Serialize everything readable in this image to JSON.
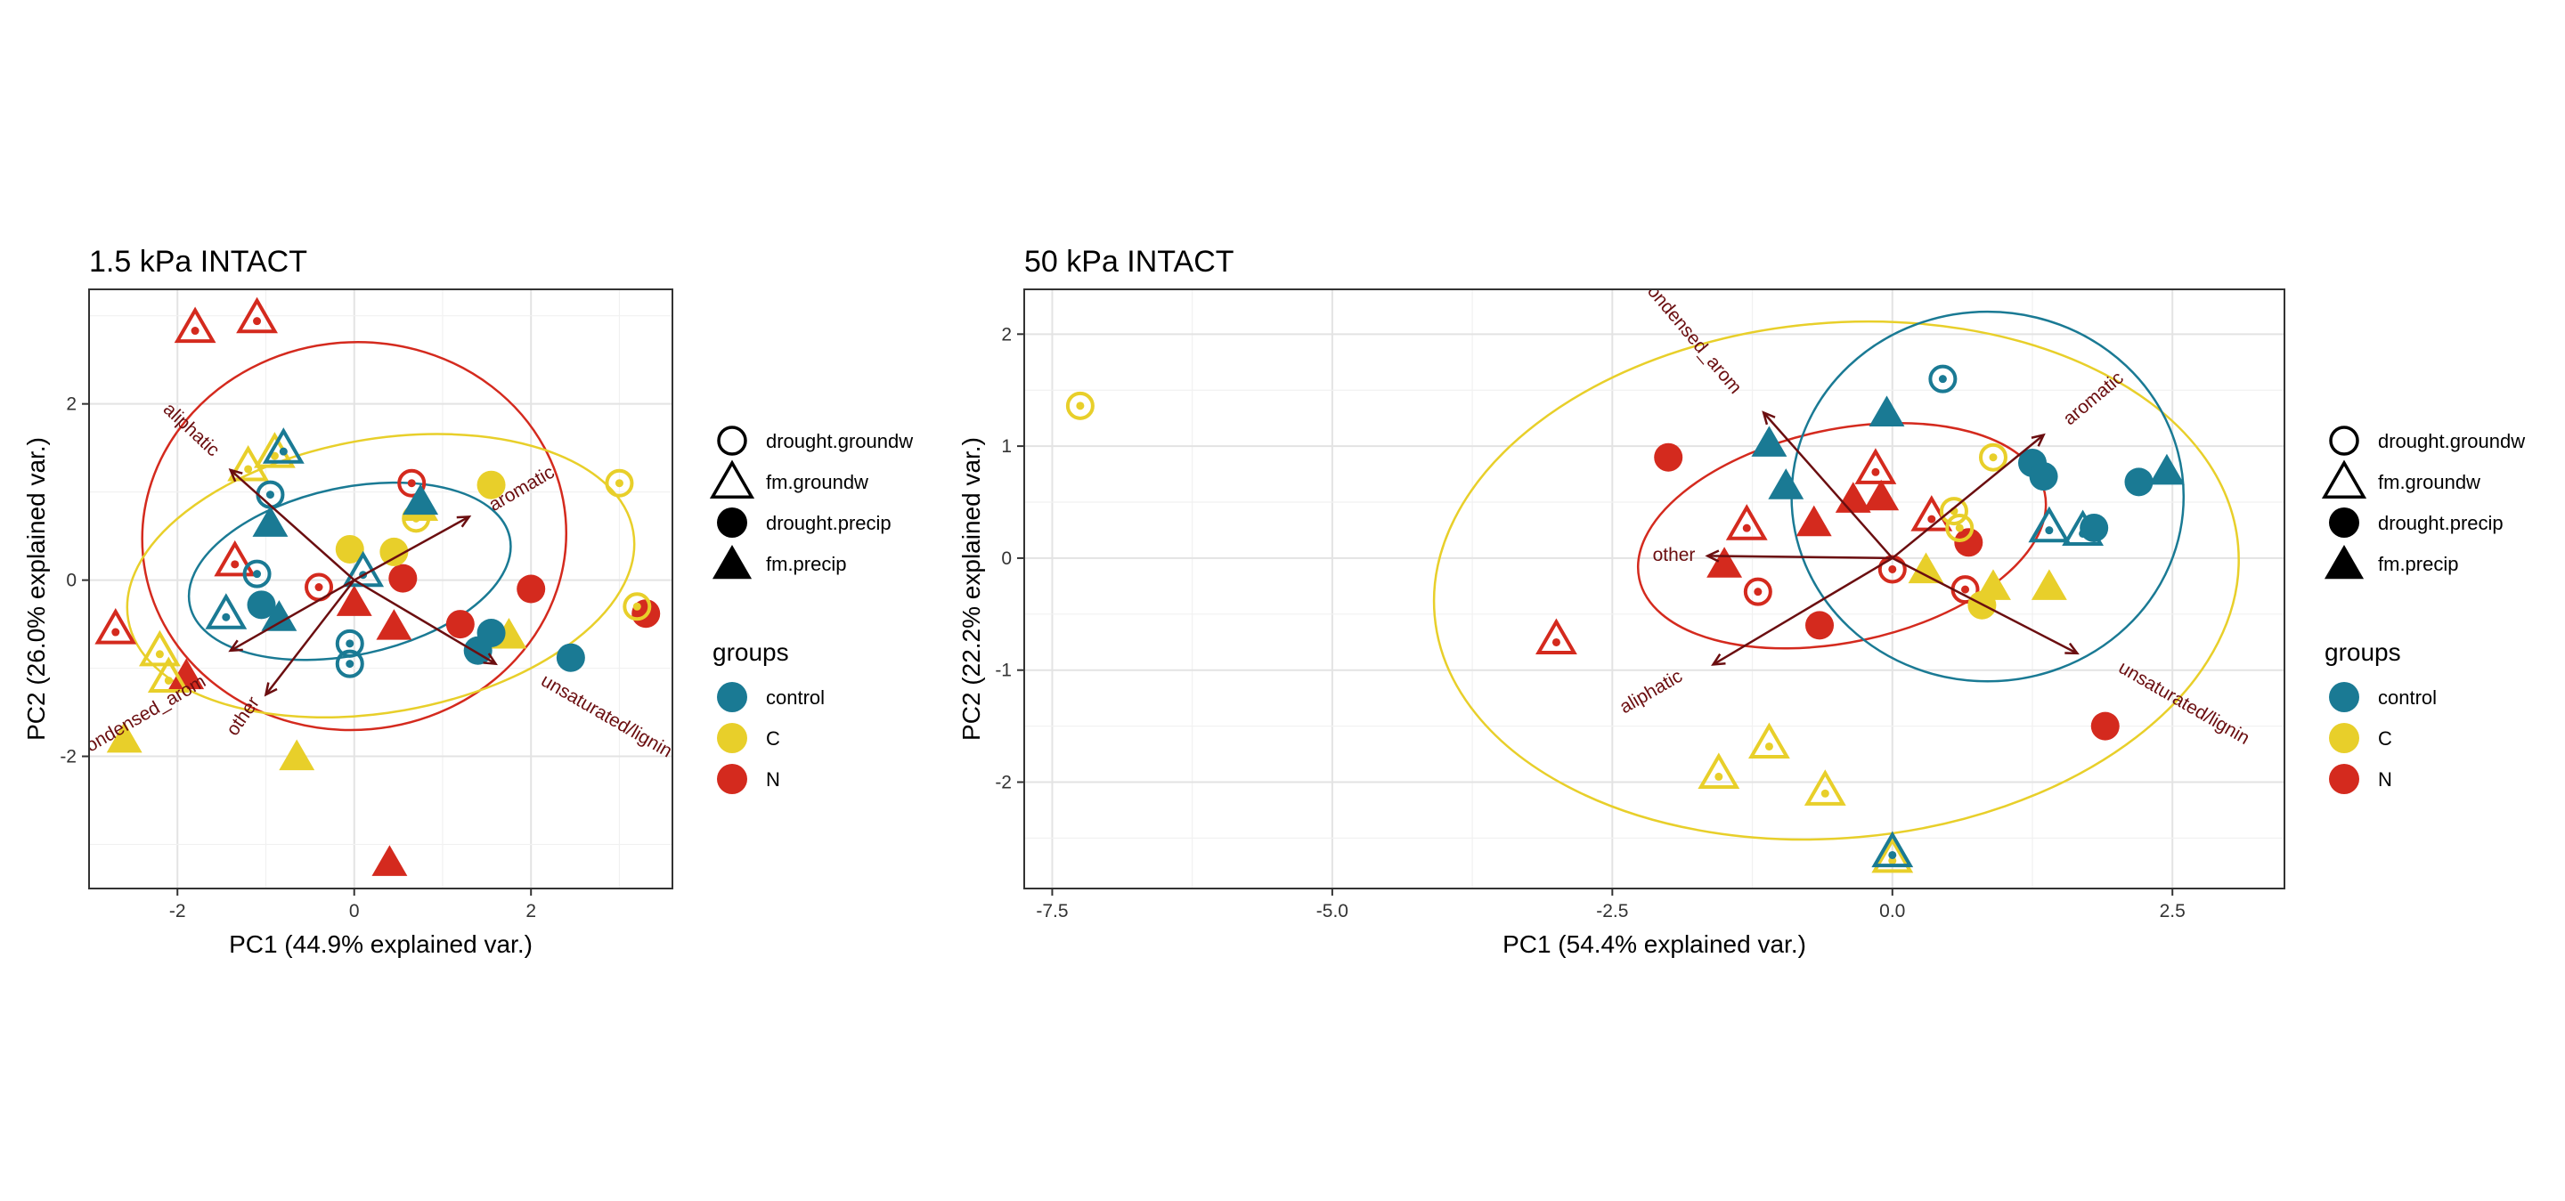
{
  "colors": {
    "control": "#1a7a94",
    "C": "#e8cf2a",
    "N": "#d42a1e",
    "loading": "#6b0e10",
    "grid_major": "#e3e3e3",
    "grid_minor": "#f1f1f1",
    "panel_border": "#333333",
    "axis_text": "#333333"
  },
  "legend": {
    "shape_entries": [
      {
        "label": "drought.groundw",
        "shape": "open-circle"
      },
      {
        "label": "fm.groundw",
        "shape": "open-triangle"
      },
      {
        "label": "drought.precip",
        "shape": "filled-circle"
      },
      {
        "label": "fm.precip",
        "shape": "filled-triangle"
      }
    ],
    "groups_title": "groups",
    "group_entries": [
      {
        "label": "control",
        "key": "control"
      },
      {
        "label": "C",
        "key": "C"
      },
      {
        "label": "N",
        "key": "N"
      }
    ]
  },
  "chart_data": [
    {
      "type": "scatter",
      "title": "1.5 kPa INTACT",
      "xlabel": "PC1 (44.9% explained var.)",
      "ylabel": "PC2 (26.0% explained var.)",
      "xlim": [
        -3.0,
        3.6
      ],
      "ylim": [
        -3.5,
        3.3
      ],
      "xticks": [
        -2,
        0,
        2
      ],
      "xticklabels": [
        "-2",
        "0",
        "2"
      ],
      "yticks": [
        -2,
        0,
        2
      ],
      "yticklabels": [
        "-2",
        "0",
        "2"
      ],
      "grid": true,
      "legend_position": "right",
      "points": [
        {
          "x": -1.8,
          "y": 2.87,
          "group": "N",
          "shape": "ot"
        },
        {
          "x": -1.1,
          "y": 2.98,
          "group": "N",
          "shape": "ot"
        },
        {
          "x": -2.7,
          "y": -0.55,
          "group": "N",
          "shape": "ot"
        },
        {
          "x": -1.35,
          "y": 0.22,
          "group": "N",
          "shape": "ot"
        },
        {
          "x": -0.4,
          "y": -0.08,
          "group": "N",
          "shape": "oc"
        },
        {
          "x": 0.65,
          "y": 1.1,
          "group": "N",
          "shape": "oc"
        },
        {
          "x": 0.55,
          "y": 0.02,
          "group": "N",
          "shape": "fc"
        },
        {
          "x": 1.2,
          "y": -0.5,
          "group": "N",
          "shape": "fc"
        },
        {
          "x": 2.0,
          "y": -0.1,
          "group": "N",
          "shape": "fc"
        },
        {
          "x": 3.3,
          "y": -0.38,
          "group": "N",
          "shape": "fc"
        },
        {
          "x": -1.9,
          "y": -1.08,
          "group": "N",
          "shape": "ft"
        },
        {
          "x": 0.0,
          "y": -0.25,
          "group": "N",
          "shape": "ft"
        },
        {
          "x": 0.45,
          "y": -0.52,
          "group": "N",
          "shape": "ft"
        },
        {
          "x": 0.4,
          "y": -3.2,
          "group": "N",
          "shape": "ft"
        },
        {
          "x": -0.9,
          "y": 1.45,
          "group": "C",
          "shape": "ot"
        },
        {
          "x": -1.2,
          "y": 1.3,
          "group": "C",
          "shape": "ot"
        },
        {
          "x": -2.2,
          "y": -0.8,
          "group": "C",
          "shape": "ot"
        },
        {
          "x": -2.1,
          "y": -1.1,
          "group": "C",
          "shape": "ot"
        },
        {
          "x": 0.7,
          "y": 0.7,
          "group": "C",
          "shape": "oc"
        },
        {
          "x": 3.0,
          "y": 1.1,
          "group": "C",
          "shape": "oc"
        },
        {
          "x": 3.2,
          "y": -0.3,
          "group": "C",
          "shape": "oc"
        },
        {
          "x": -0.05,
          "y": 0.35,
          "group": "C",
          "shape": "fc"
        },
        {
          "x": 0.45,
          "y": 0.32,
          "group": "C",
          "shape": "fc"
        },
        {
          "x": 1.55,
          "y": 1.08,
          "group": "C",
          "shape": "fc"
        },
        {
          "x": 1.75,
          "y": -0.62,
          "group": "C",
          "shape": "ft"
        },
        {
          "x": -2.6,
          "y": -1.8,
          "group": "C",
          "shape": "ft"
        },
        {
          "x": -0.65,
          "y": -2.0,
          "group": "C",
          "shape": "ft"
        },
        {
          "x": 0.75,
          "y": 0.83,
          "group": "C",
          "shape": "ft"
        },
        {
          "x": -0.95,
          "y": 0.97,
          "group": "control",
          "shape": "oc"
        },
        {
          "x": -1.1,
          "y": 0.07,
          "group": "control",
          "shape": "oc"
        },
        {
          "x": -0.05,
          "y": -0.72,
          "group": "control",
          "shape": "oc"
        },
        {
          "x": -0.05,
          "y": -0.95,
          "group": "control",
          "shape": "oc"
        },
        {
          "x": -1.45,
          "y": -0.38,
          "group": "control",
          "shape": "ot"
        },
        {
          "x": 0.1,
          "y": 0.1,
          "group": "control",
          "shape": "ot"
        },
        {
          "x": -0.8,
          "y": 1.5,
          "group": "control",
          "shape": "ot"
        },
        {
          "x": -1.05,
          "y": -0.28,
          "group": "control",
          "shape": "fc"
        },
        {
          "x": 1.4,
          "y": -0.8,
          "group": "control",
          "shape": "fc"
        },
        {
          "x": 1.55,
          "y": -0.6,
          "group": "control",
          "shape": "fc"
        },
        {
          "x": 2.45,
          "y": -0.88,
          "group": "control",
          "shape": "fc"
        },
        {
          "x": -0.95,
          "y": 0.65,
          "group": "control",
          "shape": "ft"
        },
        {
          "x": -0.85,
          "y": -0.42,
          "group": "control",
          "shape": "ft"
        },
        {
          "x": 0.75,
          "y": 0.9,
          "group": "control",
          "shape": "ft"
        }
      ],
      "ellipses": [
        {
          "group": "N",
          "cx": 0.0,
          "cy": 0.5,
          "rx": 2.4,
          "ry": 2.2,
          "angle": -5
        },
        {
          "group": "C",
          "cx": 0.3,
          "cy": 0.05,
          "rx": 2.9,
          "ry": 1.55,
          "angle": -10
        },
        {
          "group": "control",
          "cx": -0.05,
          "cy": 0.1,
          "rx": 1.85,
          "ry": 0.95,
          "angle": -12
        }
      ],
      "loadings": [
        {
          "name": "aliphatic",
          "x": -1.4,
          "y": 1.25,
          "label_x": -1.85,
          "label_y": 1.7,
          "rot": 43
        },
        {
          "name": "aromatic",
          "x": 1.3,
          "y": 0.72,
          "label_x": 1.9,
          "label_y": 1.03,
          "rot": -30
        },
        {
          "name": "unsaturated/lignin",
          "x": 1.6,
          "y": -0.95,
          "label_x": 2.85,
          "label_y": -1.55,
          "rot": 30
        },
        {
          "name": "condensed_arom",
          "x": -1.4,
          "y": -0.8,
          "label_x": -2.4,
          "label_y": -1.55,
          "rot": -30
        },
        {
          "name": "other",
          "x": -1.0,
          "y": -1.3,
          "label_x": -1.25,
          "label_y": -1.55,
          "rot": -55
        }
      ]
    },
    {
      "type": "scatter",
      "title": "50 kPa INTACT",
      "xlabel": "PC1 (54.4% explained var.)",
      "ylabel": "PC2 (22.2% explained var.)",
      "xlim": [
        -7.75,
        3.5
      ],
      "ylim": [
        -2.95,
        2.4
      ],
      "xticks": [
        -7.5,
        -5.0,
        -2.5,
        0.0,
        2.5
      ],
      "xticklabels": [
        "-7.5",
        "-5.0",
        "-2.5",
        "0.0",
        "2.5"
      ],
      "yticks": [
        -2,
        -1,
        0,
        1,
        2
      ],
      "yticklabels": [
        "-2",
        "-1",
        "0",
        "1",
        "2"
      ],
      "grid": true,
      "legend_position": "right",
      "points": [
        {
          "x": -7.25,
          "y": 1.36,
          "group": "C",
          "shape": "oc"
        },
        {
          "x": -2.0,
          "y": 0.9,
          "group": "N",
          "shape": "fc"
        },
        {
          "x": -3.0,
          "y": -0.72,
          "group": "N",
          "shape": "ot"
        },
        {
          "x": -1.3,
          "y": 0.3,
          "group": "N",
          "shape": "ot"
        },
        {
          "x": -1.2,
          "y": -0.3,
          "group": "N",
          "shape": "oc"
        },
        {
          "x": -1.5,
          "y": -0.05,
          "group": "N",
          "shape": "ft"
        },
        {
          "x": -0.7,
          "y": 0.32,
          "group": "N",
          "shape": "ft"
        },
        {
          "x": -0.35,
          "y": 0.53,
          "group": "N",
          "shape": "ft"
        },
        {
          "x": -0.1,
          "y": 0.55,
          "group": "N",
          "shape": "ft"
        },
        {
          "x": -0.65,
          "y": -0.6,
          "group": "N",
          "shape": "fc"
        },
        {
          "x": -0.15,
          "y": 0.8,
          "group": "N",
          "shape": "ot"
        },
        {
          "x": 0.35,
          "y": 0.38,
          "group": "N",
          "shape": "ot"
        },
        {
          "x": 0.0,
          "y": -0.1,
          "group": "N",
          "shape": "oc"
        },
        {
          "x": 0.65,
          "y": -0.28,
          "group": "N",
          "shape": "oc"
        },
        {
          "x": 0.68,
          "y": 0.14,
          "group": "N",
          "shape": "fc"
        },
        {
          "x": 1.9,
          "y": -1.5,
          "group": "N",
          "shape": "fc"
        },
        {
          "x": -1.55,
          "y": -1.92,
          "group": "C",
          "shape": "ot"
        },
        {
          "x": -1.1,
          "y": -1.65,
          "group": "C",
          "shape": "ot"
        },
        {
          "x": -0.6,
          "y": -2.07,
          "group": "C",
          "shape": "ot"
        },
        {
          "x": 0.0,
          "y": -2.67,
          "group": "C",
          "shape": "ot"
        },
        {
          "x": 0.3,
          "y": -0.1,
          "group": "C",
          "shape": "ft"
        },
        {
          "x": 0.9,
          "y": -0.25,
          "group": "C",
          "shape": "ft"
        },
        {
          "x": 1.4,
          "y": -0.25,
          "group": "C",
          "shape": "ft"
        },
        {
          "x": 0.8,
          "y": -0.42,
          "group": "C",
          "shape": "fc"
        },
        {
          "x": 0.55,
          "y": 0.42,
          "group": "C",
          "shape": "oc"
        },
        {
          "x": 0.6,
          "y": 0.27,
          "group": "C",
          "shape": "oc"
        },
        {
          "x": 0.9,
          "y": 0.9,
          "group": "C",
          "shape": "oc"
        },
        {
          "x": 0.45,
          "y": 1.6,
          "group": "control",
          "shape": "oc"
        },
        {
          "x": -0.05,
          "y": 1.3,
          "group": "control",
          "shape": "ft"
        },
        {
          "x": -1.1,
          "y": 1.03,
          "group": "control",
          "shape": "ft"
        },
        {
          "x": -0.95,
          "y": 0.65,
          "group": "control",
          "shape": "ft"
        },
        {
          "x": 1.25,
          "y": 0.85,
          "group": "control",
          "shape": "fc"
        },
        {
          "x": 1.35,
          "y": 0.73,
          "group": "control",
          "shape": "fc"
        },
        {
          "x": 2.2,
          "y": 0.68,
          "group": "control",
          "shape": "fc"
        },
        {
          "x": 1.8,
          "y": 0.27,
          "group": "control",
          "shape": "fc"
        },
        {
          "x": 2.45,
          "y": 0.78,
          "group": "control",
          "shape": "ft"
        },
        {
          "x": 1.4,
          "y": 0.28,
          "group": "control",
          "shape": "ot"
        },
        {
          "x": 1.7,
          "y": 0.25,
          "group": "control",
          "shape": "ot"
        },
        {
          "x": 0.0,
          "y": -2.62,
          "group": "control",
          "shape": "ot"
        }
      ],
      "ellipses": [
        {
          "group": "C",
          "cx": -0.5,
          "cy": -0.2,
          "rx": 3.6,
          "ry": 2.3,
          "angle": -5
        },
        {
          "group": "N",
          "cx": -0.45,
          "cy": 0.2,
          "rx": 1.85,
          "ry": 0.95,
          "angle": -12
        },
        {
          "group": "control",
          "cx": 0.85,
          "cy": 0.55,
          "rx": 1.75,
          "ry": 1.65,
          "angle": 0
        }
      ],
      "loadings": [
        {
          "name": "condensed_arom",
          "x": -1.15,
          "y": 1.3,
          "label_x": -1.8,
          "label_y": 1.98,
          "rot": 50
        },
        {
          "name": "aromatic",
          "x": 1.35,
          "y": 1.1,
          "label_x": 1.8,
          "label_y": 1.42,
          "rot": -40
        },
        {
          "name": "unsaturated/lignin",
          "x": 1.65,
          "y": -0.85,
          "label_x": 2.6,
          "label_y": -1.3,
          "rot": 30
        },
        {
          "name": "aliphatic",
          "x": -1.6,
          "y": -0.95,
          "label_x": -2.15,
          "label_y": -1.2,
          "rot": -30
        },
        {
          "name": "other",
          "x": -1.65,
          "y": 0.02,
          "label_x": -1.95,
          "label_y": 0.02,
          "rot": 0
        }
      ]
    }
  ]
}
